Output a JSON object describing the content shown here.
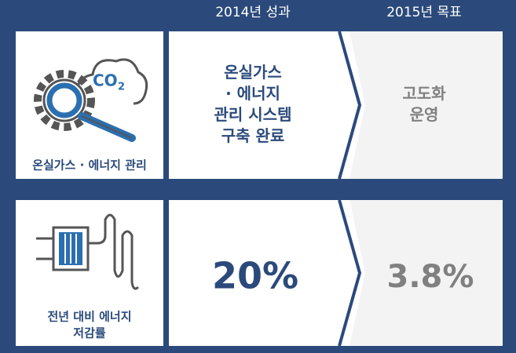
{
  "header": {
    "col_2014": "2014년 성과",
    "col_2015": "2015년 목표"
  },
  "rows": [
    {
      "icon_text": {
        "main": "CO",
        "sub": "2"
      },
      "label": [
        "온실가스 · 에너지 관리"
      ],
      "result_2014": [
        "온실가스",
        "· 에너지",
        "관리 시스템",
        "구축 완료"
      ],
      "target_2015": [
        "고도화",
        "운영"
      ]
    },
    {
      "label": [
        "전년 대비 에너지",
        "저감률"
      ],
      "result_2014": [
        "20%"
      ],
      "target_2015": [
        "3.8%"
      ]
    }
  ]
}
